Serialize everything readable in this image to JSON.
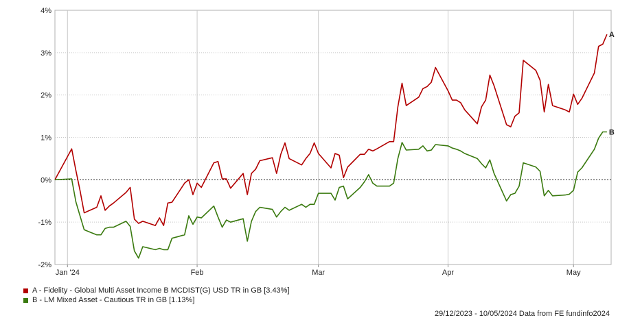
{
  "chart_data": {
    "type": "line",
    "y_ticks": [
      "4%",
      "3%",
      "2%",
      "1%",
      "0%",
      "-1%",
      "-2%"
    ],
    "y_tick_values": [
      4,
      3,
      2,
      1,
      0,
      -1,
      -2
    ],
    "ylim": [
      -2,
      4
    ],
    "x_ticks": [
      "Jan '24",
      "Feb",
      "Mar",
      "Apr",
      "May"
    ],
    "x_tick_dates": [
      "2024-01-01",
      "2024-02-01",
      "2024-03-01",
      "2024-04-01",
      "2024-05-01"
    ],
    "xlim": [
      "2023-12-29",
      "2024-05-10"
    ],
    "grid": true,
    "zero_line": "dashed",
    "legend_position": "bottom-left",
    "series": [
      {
        "name": "A - Fidelity - Global Multi Asset Income B MCDIST(G) USD TR in GB [3.43%]",
        "end_label": "A",
        "color": "#b20000",
        "values": [
          [
            "2023-12-29",
            0.0
          ],
          [
            "2024-01-02",
            0.73
          ],
          [
            "2024-01-03",
            0.22
          ],
          [
            "2024-01-04",
            -0.25
          ],
          [
            "2024-01-05",
            -0.78
          ],
          [
            "2024-01-08",
            -0.65
          ],
          [
            "2024-01-09",
            -0.38
          ],
          [
            "2024-01-10",
            -0.72
          ],
          [
            "2024-01-11",
            -0.62
          ],
          [
            "2024-01-12",
            -0.55
          ],
          [
            "2024-01-15",
            -0.3
          ],
          [
            "2024-01-16",
            -0.18
          ],
          [
            "2024-01-17",
            -0.93
          ],
          [
            "2024-01-18",
            -1.03
          ],
          [
            "2024-01-19",
            -0.98
          ],
          [
            "2024-01-22",
            -1.08
          ],
          [
            "2024-01-23",
            -0.9
          ],
          [
            "2024-01-24",
            -1.08
          ],
          [
            "2024-01-25",
            -0.55
          ],
          [
            "2024-01-26",
            -0.53
          ],
          [
            "2024-01-29",
            -0.08
          ],
          [
            "2024-01-30",
            0.0
          ],
          [
            "2024-01-31",
            -0.35
          ],
          [
            "2024-02-01",
            -0.08
          ],
          [
            "2024-02-02",
            -0.18
          ],
          [
            "2024-02-05",
            0.4
          ],
          [
            "2024-02-06",
            0.43
          ],
          [
            "2024-02-07",
            0.02
          ],
          [
            "2024-02-08",
            0.02
          ],
          [
            "2024-02-09",
            -0.2
          ],
          [
            "2024-02-12",
            0.15
          ],
          [
            "2024-02-13",
            -0.35
          ],
          [
            "2024-02-14",
            0.15
          ],
          [
            "2024-02-15",
            0.25
          ],
          [
            "2024-02-16",
            0.45
          ],
          [
            "2024-02-19",
            0.52
          ],
          [
            "2024-02-20",
            0.15
          ],
          [
            "2024-02-21",
            0.6
          ],
          [
            "2024-02-22",
            0.87
          ],
          [
            "2024-02-23",
            0.5
          ],
          [
            "2024-02-26",
            0.35
          ],
          [
            "2024-02-27",
            0.5
          ],
          [
            "2024-02-28",
            0.62
          ],
          [
            "2024-02-29",
            0.87
          ],
          [
            "2024-03-01",
            0.62
          ],
          [
            "2024-03-04",
            0.28
          ],
          [
            "2024-03-05",
            0.62
          ],
          [
            "2024-03-06",
            0.58
          ],
          [
            "2024-03-07",
            0.05
          ],
          [
            "2024-03-08",
            0.3
          ],
          [
            "2024-03-11",
            0.6
          ],
          [
            "2024-03-12",
            0.6
          ],
          [
            "2024-03-13",
            0.72
          ],
          [
            "2024-03-14",
            0.68
          ],
          [
            "2024-03-15",
            0.73
          ],
          [
            "2024-03-18",
            0.9
          ],
          [
            "2024-03-19",
            0.9
          ],
          [
            "2024-03-20",
            1.72
          ],
          [
            "2024-03-21",
            2.28
          ],
          [
            "2024-03-22",
            1.75
          ],
          [
            "2024-03-25",
            1.95
          ],
          [
            "2024-03-26",
            2.15
          ],
          [
            "2024-03-27",
            2.2
          ],
          [
            "2024-03-28",
            2.3
          ],
          [
            "2024-03-29",
            2.65
          ],
          [
            "2024-04-01",
            2.1
          ],
          [
            "2024-04-02",
            1.88
          ],
          [
            "2024-04-03",
            1.88
          ],
          [
            "2024-04-04",
            1.82
          ],
          [
            "2024-04-05",
            1.65
          ],
          [
            "2024-04-08",
            1.32
          ],
          [
            "2024-04-09",
            1.72
          ],
          [
            "2024-04-10",
            1.88
          ],
          [
            "2024-04-11",
            2.47
          ],
          [
            "2024-04-12",
            2.22
          ],
          [
            "2024-04-15",
            1.3
          ],
          [
            "2024-04-16",
            1.25
          ],
          [
            "2024-04-17",
            1.5
          ],
          [
            "2024-04-18",
            1.58
          ],
          [
            "2024-04-19",
            2.82
          ],
          [
            "2024-04-22",
            2.58
          ],
          [
            "2024-04-23",
            2.35
          ],
          [
            "2024-04-24",
            1.6
          ],
          [
            "2024-04-25",
            2.25
          ],
          [
            "2024-04-26",
            1.75
          ],
          [
            "2024-04-29",
            1.65
          ],
          [
            "2024-04-30",
            1.6
          ],
          [
            "2024-05-01",
            2.02
          ],
          [
            "2024-05-02",
            1.78
          ],
          [
            "2024-05-03",
            1.92
          ],
          [
            "2024-05-06",
            2.52
          ],
          [
            "2024-05-07",
            3.15
          ],
          [
            "2024-05-08",
            3.2
          ],
          [
            "2024-05-09",
            3.43
          ]
        ]
      },
      {
        "name": "B - LM Mixed Asset - Cautious TR in GB [1.13%]",
        "end_label": "B",
        "color": "#3a7a0f",
        "values": [
          [
            "2023-12-29",
            0.0
          ],
          [
            "2024-01-02",
            0.02
          ],
          [
            "2024-01-03",
            -0.52
          ],
          [
            "2024-01-04",
            -0.85
          ],
          [
            "2024-01-05",
            -1.18
          ],
          [
            "2024-01-08",
            -1.3
          ],
          [
            "2024-01-09",
            -1.3
          ],
          [
            "2024-01-10",
            -1.15
          ],
          [
            "2024-01-11",
            -1.12
          ],
          [
            "2024-01-12",
            -1.12
          ],
          [
            "2024-01-15",
            -0.98
          ],
          [
            "2024-01-16",
            -1.1
          ],
          [
            "2024-01-17",
            -1.68
          ],
          [
            "2024-01-18",
            -1.85
          ],
          [
            "2024-01-19",
            -1.58
          ],
          [
            "2024-01-22",
            -1.65
          ],
          [
            "2024-01-23",
            -1.62
          ],
          [
            "2024-01-24",
            -1.65
          ],
          [
            "2024-01-25",
            -1.65
          ],
          [
            "2024-01-26",
            -1.38
          ],
          [
            "2024-01-29",
            -1.3
          ],
          [
            "2024-01-30",
            -0.85
          ],
          [
            "2024-01-31",
            -1.05
          ],
          [
            "2024-02-01",
            -0.88
          ],
          [
            "2024-02-02",
            -0.9
          ],
          [
            "2024-02-05",
            -0.62
          ],
          [
            "2024-02-06",
            -0.88
          ],
          [
            "2024-02-07",
            -1.12
          ],
          [
            "2024-02-08",
            -0.95
          ],
          [
            "2024-02-09",
            -1.0
          ],
          [
            "2024-02-12",
            -0.92
          ],
          [
            "2024-02-13",
            -1.45
          ],
          [
            "2024-02-14",
            -0.98
          ],
          [
            "2024-02-15",
            -0.75
          ],
          [
            "2024-02-16",
            -0.65
          ],
          [
            "2024-02-19",
            -0.7
          ],
          [
            "2024-02-20",
            -0.88
          ],
          [
            "2024-02-21",
            -0.75
          ],
          [
            "2024-02-22",
            -0.65
          ],
          [
            "2024-02-23",
            -0.72
          ],
          [
            "2024-02-26",
            -0.58
          ],
          [
            "2024-02-27",
            -0.65
          ],
          [
            "2024-02-28",
            -0.58
          ],
          [
            "2024-02-29",
            -0.58
          ],
          [
            "2024-03-01",
            -0.32
          ],
          [
            "2024-03-04",
            -0.32
          ],
          [
            "2024-03-05",
            -0.48
          ],
          [
            "2024-03-06",
            -0.18
          ],
          [
            "2024-03-07",
            -0.15
          ],
          [
            "2024-03-08",
            -0.45
          ],
          [
            "2024-03-11",
            -0.18
          ],
          [
            "2024-03-12",
            -0.05
          ],
          [
            "2024-03-13",
            0.12
          ],
          [
            "2024-03-14",
            -0.08
          ],
          [
            "2024-03-15",
            -0.15
          ],
          [
            "2024-03-18",
            -0.15
          ],
          [
            "2024-03-19",
            -0.08
          ],
          [
            "2024-03-20",
            0.5
          ],
          [
            "2024-03-21",
            0.88
          ],
          [
            "2024-03-22",
            0.7
          ],
          [
            "2024-03-25",
            0.72
          ],
          [
            "2024-03-26",
            0.8
          ],
          [
            "2024-03-27",
            0.68
          ],
          [
            "2024-03-28",
            0.7
          ],
          [
            "2024-03-29",
            0.83
          ],
          [
            "2024-04-01",
            0.8
          ],
          [
            "2024-04-02",
            0.75
          ],
          [
            "2024-04-03",
            0.72
          ],
          [
            "2024-04-04",
            0.68
          ],
          [
            "2024-04-05",
            0.62
          ],
          [
            "2024-04-08",
            0.5
          ],
          [
            "2024-04-09",
            0.38
          ],
          [
            "2024-04-10",
            0.28
          ],
          [
            "2024-04-11",
            0.47
          ],
          [
            "2024-04-12",
            0.15
          ],
          [
            "2024-04-15",
            -0.5
          ],
          [
            "2024-04-16",
            -0.35
          ],
          [
            "2024-04-17",
            -0.32
          ],
          [
            "2024-04-18",
            -0.15
          ],
          [
            "2024-04-19",
            0.4
          ],
          [
            "2024-04-22",
            0.3
          ],
          [
            "2024-04-23",
            0.2
          ],
          [
            "2024-04-24",
            -0.38
          ],
          [
            "2024-04-25",
            -0.25
          ],
          [
            "2024-04-26",
            -0.38
          ],
          [
            "2024-04-29",
            -0.36
          ],
          [
            "2024-04-30",
            -0.34
          ],
          [
            "2024-05-01",
            -0.25
          ],
          [
            "2024-05-02",
            0.18
          ],
          [
            "2024-05-03",
            0.28
          ],
          [
            "2024-05-06",
            0.72
          ],
          [
            "2024-05-07",
            0.98
          ],
          [
            "2024-05-08",
            1.13
          ],
          [
            "2024-05-09",
            1.13
          ]
        ]
      }
    ]
  },
  "footer": {
    "text": "29/12/2023 - 10/05/2024 Data from FE fundinfo2024"
  }
}
